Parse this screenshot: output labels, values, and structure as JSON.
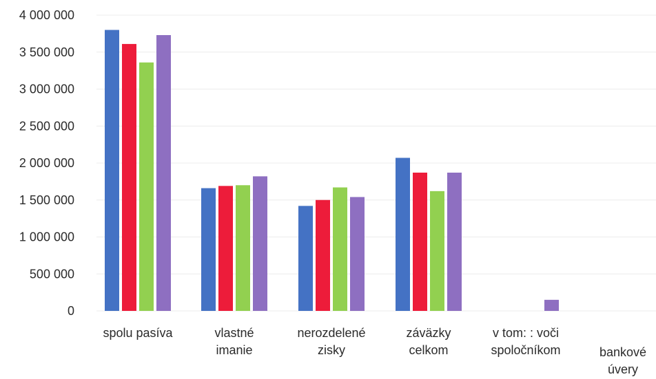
{
  "chart_data": {
    "type": "bar",
    "title": "",
    "xlabel": "",
    "ylabel": "",
    "ylim": [
      0,
      4000000
    ],
    "yticks": [
      0,
      500000,
      1000000,
      1500000,
      2000000,
      2500000,
      3000000,
      3500000,
      4000000
    ],
    "ytick_labels": [
      "0",
      "500 000",
      "1 000 000",
      "1 500 000",
      "2 000 000",
      "2 500 000",
      "3 000 000",
      "3 500 000",
      "4 000 000"
    ],
    "grid": true,
    "legend": "none",
    "categories": [
      [
        "spolu pasíva"
      ],
      [
        "vlastné",
        "imanie"
      ],
      [
        "nerozdelené",
        "zisky"
      ],
      [
        "záväzky",
        "celkom"
      ],
      [
        "v tom: : voči",
        "spoločníkom"
      ],
      [
        "bankové",
        "úvery"
      ]
    ],
    "series": [
      {
        "color": "#4472c4",
        "values": [
          3800000,
          1660000,
          1420000,
          2070000,
          0,
          0
        ]
      },
      {
        "color": "#ed1c3a",
        "values": [
          3610000,
          1690000,
          1500000,
          1870000,
          0,
          0
        ]
      },
      {
        "color": "#92d050",
        "values": [
          3360000,
          1700000,
          1670000,
          1620000,
          0,
          0
        ]
      },
      {
        "color": "#8e6fc1",
        "values": [
          3730000,
          1820000,
          1540000,
          1870000,
          150000,
          0
        ]
      }
    ]
  }
}
